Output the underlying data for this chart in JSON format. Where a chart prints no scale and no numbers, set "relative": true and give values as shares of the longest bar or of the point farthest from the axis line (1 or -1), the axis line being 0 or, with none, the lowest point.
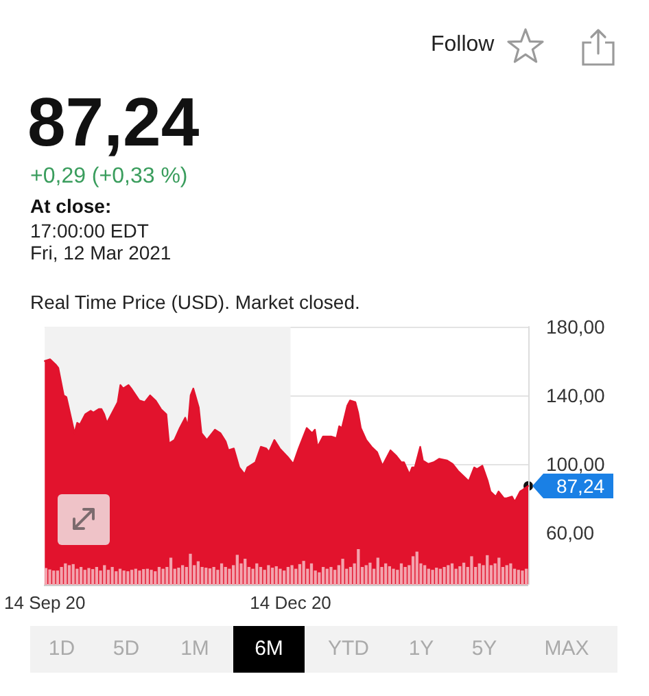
{
  "chart_data": [
    {
      "type": "area",
      "title": "87,24",
      "subtitle": "+0,29 (+0,33 %)",
      "annotations": [
        "Follow",
        "At close:",
        "17:00:00 EDT",
        "Fri, 12 Mar 2021",
        "Real Time Price (USD). Market closed.",
        "1D",
        "5D",
        "1M",
        "6M",
        "YTD",
        "1Y",
        "5Y",
        "MAX",
        {
          "text": "87,24",
          "x": "2021-03-12",
          "y": 87.24
        }
      ],
      "x": [
        "2020-09-14",
        "2020-09-16",
        "2020-09-18",
        "2020-09-19",
        "2020-09-21",
        "2020-09-22",
        "2020-09-25",
        "2020-09-26",
        "2020-09-27",
        "2020-09-29",
        "2020-10-01",
        "2020-10-02",
        "2020-10-04",
        "2020-10-05",
        "2020-10-06",
        "2020-10-07",
        "2020-10-09",
        "2020-10-11",
        "2020-10-12",
        "2020-10-13",
        "2020-10-15",
        "2020-10-16",
        "2020-10-19",
        "2020-10-21",
        "2020-10-23",
        "2020-10-25",
        "2020-10-27",
        "2020-10-29",
        "2020-10-30",
        "2020-11-01",
        "2020-11-03",
        "2020-11-05",
        "2020-11-06",
        "2020-11-07",
        "2020-11-08",
        "2020-11-10",
        "2020-11-11",
        "2020-11-13",
        "2020-11-16",
        "2020-11-18",
        "2020-11-20",
        "2020-11-21",
        "2020-11-23",
        "2020-11-25",
        "2020-11-27",
        "2020-11-28",
        "2020-12-01",
        "2020-12-03",
        "2020-12-05",
        "2020-12-06",
        "2020-12-08",
        "2020-12-10",
        "2020-12-13",
        "2020-12-15",
        "2020-12-17",
        "2020-12-20",
        "2020-12-22",
        "2020-12-23",
        "2020-12-24",
        "2020-12-26",
        "2020-12-29",
        "2020-12-31",
        "2021-01-01",
        "2021-01-02",
        "2021-01-04",
        "2021-01-05",
        "2021-01-07",
        "2021-01-08",
        "2021-01-09",
        "2021-01-11",
        "2021-01-13",
        "2021-01-15",
        "2021-01-17",
        "2021-01-20",
        "2021-01-22",
        "2021-01-24",
        "2021-01-25",
        "2021-01-27",
        "2021-01-28",
        "2021-01-29",
        "2021-01-31",
        "2021-02-01",
        "2021-02-03",
        "2021-02-05",
        "2021-02-07",
        "2021-02-10",
        "2021-02-12",
        "2021-02-14",
        "2021-02-16",
        "2021-02-18",
        "2021-02-20",
        "2021-02-21",
        "2021-02-23",
        "2021-02-25",
        "2021-02-26",
        "2021-02-28",
        "2021-03-01",
        "2021-03-03",
        "2021-03-04",
        "2021-03-06",
        "2021-03-07",
        "2021-03-09",
        "2021-03-10",
        "2021-03-12"
      ],
      "values": [
        160,
        161,
        158,
        156,
        140,
        139,
        118,
        124,
        123,
        129,
        131,
        130,
        132,
        132,
        129,
        124,
        130,
        136,
        146,
        144,
        146,
        144,
        137,
        136,
        140,
        137,
        132,
        129,
        112,
        114,
        121,
        127,
        122,
        140,
        144,
        133,
        118,
        114,
        120,
        118,
        113,
        108,
        109,
        98,
        94,
        98,
        101,
        110,
        109,
        107,
        114,
        109,
        104,
        100,
        109,
        121,
        118,
        120,
        110,
        116,
        116,
        115,
        122,
        121,
        134,
        137,
        136,
        130,
        121,
        114,
        110,
        107,
        99,
        108,
        105,
        101,
        101,
        94,
        98,
        98,
        110,
        102,
        100,
        101,
        103,
        102,
        100,
        96,
        93,
        90,
        98,
        97,
        99,
        90,
        84,
        81,
        84,
        80,
        80,
        81,
        78,
        84,
        85,
        87.24
      ],
      "color": "#e2132d",
      "xlim": [
        "2020-09-14",
        "2021-03-12"
      ],
      "xticks": [
        {
          "value": "2020-09-14",
          "label": "14 Sep 20"
        },
        {
          "value": "2020-12-14",
          "label": "14 Dec 20"
        }
      ],
      "ylim": [
        30,
        180
      ],
      "yticks": [
        {
          "value": 60,
          "label": "60,00"
        },
        {
          "value": 100,
          "label": "100,00"
        },
        {
          "value": 140,
          "label": "140,00"
        },
        {
          "value": 180,
          "label": "180,00"
        }
      ],
      "grid": "y",
      "marker": "none",
      "bands": [
        {
          "axis": "x",
          "from": "2020-09-14",
          "to": "2020-12-14",
          "color": "#f2f2f2"
        }
      ]
    },
    {
      "type": "bar",
      "relative": true,
      "tick_labels": false,
      "color": "#f3a3ad",
      "categories": [
        null,
        null,
        null,
        null,
        null,
        null,
        null,
        null,
        null,
        null,
        null,
        null,
        null,
        null,
        null,
        null,
        null,
        null,
        null,
        null,
        null,
        null,
        null,
        null,
        null,
        null,
        null,
        null,
        null,
        null,
        null,
        null,
        null,
        null,
        null,
        null,
        null,
        null,
        null,
        null,
        null,
        null,
        null,
        null,
        null,
        null,
        null,
        null,
        null,
        null,
        null,
        null,
        null,
        null,
        null,
        null,
        null,
        null,
        null,
        null,
        null,
        null,
        null,
        null,
        null,
        null,
        null,
        null,
        null,
        null,
        null,
        null,
        null,
        null,
        null,
        null,
        null,
        null,
        null,
        null,
        null,
        null,
        null,
        null,
        null,
        null,
        null,
        null,
        null,
        null,
        null,
        null,
        null,
        null,
        null,
        null,
        null,
        null,
        null,
        null,
        null,
        null,
        null,
        null,
        null,
        null,
        null,
        null,
        null,
        null,
        null,
        null,
        null,
        null,
        null,
        null,
        null,
        null,
        null,
        null,
        null,
        null,
        null,
        null
      ],
      "values": [
        0.47,
        0.43,
        0.4,
        0.4,
        0.5,
        0.6,
        0.55,
        0.58,
        0.45,
        0.5,
        0.42,
        0.47,
        0.44,
        0.5,
        0.4,
        0.55,
        0.42,
        0.5,
        0.38,
        0.45,
        0.4,
        0.38,
        0.42,
        0.45,
        0.4,
        0.44,
        0.45,
        0.42,
        0.38,
        0.5,
        0.45,
        0.5,
        0.76,
        0.45,
        0.48,
        0.55,
        0.5,
        0.87,
        0.55,
        0.66,
        0.5,
        0.48,
        0.46,
        0.5,
        0.42,
        0.6,
        0.5,
        0.45,
        0.55,
        0.84,
        0.6,
        0.73,
        0.5,
        0.45,
        0.6,
        0.5,
        0.42,
        0.55,
        0.48,
        0.52,
        0.45,
        0.4,
        0.5,
        0.55,
        0.45,
        0.58,
        0.67,
        0.45,
        0.6,
        0.4,
        0.35,
        0.5,
        0.45,
        0.5,
        0.42,
        0.55,
        0.73,
        0.45,
        0.5,
        0.6,
        1,
        0.5,
        0.55,
        0.62,
        0.45,
        0.76,
        0.5,
        0.6,
        0.52,
        0.45,
        0.42,
        0.6,
        0.5,
        0.55,
        0.8,
        0.93,
        0.6,
        0.55,
        0.45,
        0.42,
        0.48,
        0.45,
        0.5,
        0.55,
        0.6,
        0.45,
        0.52,
        0.62,
        0.5,
        0.8,
        0.5,
        0.6,
        0.55,
        0.83,
        0.55,
        0.6,
        0.76,
        0.5,
        0.55,
        0.6,
        0.45,
        0.42,
        0.4,
        0.45
      ]
    }
  ]
}
